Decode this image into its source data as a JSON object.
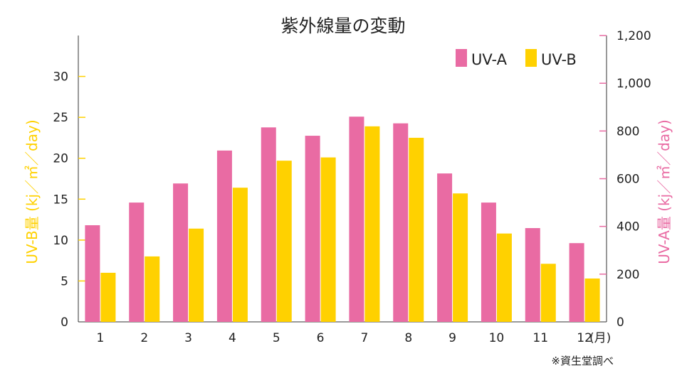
{
  "chart_data": {
    "type": "bar",
    "title": "紫外線量の変動",
    "categories": [
      "1",
      "2",
      "3",
      "4",
      "5",
      "6",
      "7",
      "8",
      "9",
      "10",
      "11",
      "12"
    ],
    "x_unit": "(月)",
    "series": [
      {
        "name": "UV-A",
        "axis": "right",
        "color": "#E96BA3",
        "values": [
          405,
          500,
          580,
          718,
          815,
          780,
          860,
          832,
          622,
          500,
          393,
          330
        ]
      },
      {
        "name": "UV-B",
        "axis": "left",
        "color": "#FFD100",
        "values": [
          6,
          8,
          11.4,
          16.4,
          19.7,
          20.1,
          23.9,
          22.5,
          15.7,
          10.8,
          7.1,
          5.3
        ]
      }
    ],
    "ylabel_left": "UV-B量 (kj／㎡／day)",
    "ylabel_right": "UV-A量 (kj／㎡／day)",
    "ylim_left": [
      0,
      35
    ],
    "ylim_right": [
      0,
      1200
    ],
    "yticks_left": [
      "0",
      "5",
      "10",
      "15",
      "20",
      "25",
      "30"
    ],
    "yticks_right": [
      "0",
      "200",
      "400",
      "600",
      "800",
      "1,000",
      "1,200"
    ],
    "ytick_values_left": [
      0,
      5,
      10,
      15,
      20,
      25,
      30
    ],
    "ytick_values_right": [
      0,
      200,
      400,
      600,
      800,
      1000,
      1200
    ],
    "legend_position": "top-right",
    "left_axis_color": "#FFD100",
    "right_axis_color": "#E96BA3",
    "grid": false,
    "note": "※資生堂調べ"
  }
}
